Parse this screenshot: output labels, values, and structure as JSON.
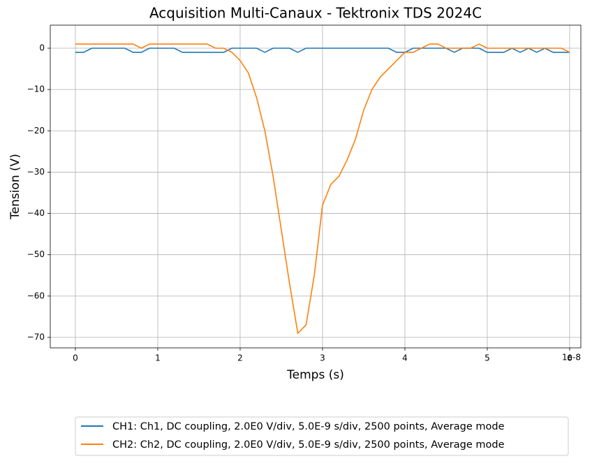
{
  "chart_data": {
    "type": "line",
    "title": "Acquisition Multi-Canaux - Tektronix TDS 2024C",
    "x_label": "Temps (s)",
    "y_label": "Tension (V)",
    "x_offset_label": "1e-8",
    "x": [
      0,
      1e-09,
      2e-09,
      3e-09,
      4e-09,
      5e-09,
      6e-09,
      7e-09,
      8e-09,
      9e-09,
      1e-08,
      1.1e-08,
      1.2e-08,
      1.3e-08,
      1.4e-08,
      1.5e-08,
      1.6e-08,
      1.7e-08,
      1.8e-08,
      1.9e-08,
      2e-08,
      2.1e-08,
      2.2e-08,
      2.3e-08,
      2.4e-08,
      2.5e-08,
      2.6e-08,
      2.7e-08,
      2.8e-08,
      2.9e-08,
      3e-08,
      3.1e-08,
      3.2e-08,
      3.3e-08,
      3.4e-08,
      3.5e-08,
      3.6e-08,
      3.7e-08,
      3.8e-08,
      3.9e-08,
      4e-08,
      4.1e-08,
      4.2e-08,
      4.3e-08,
      4.4e-08,
      4.5e-08,
      4.6e-08,
      4.7e-08,
      4.8e-08,
      4.9e-08,
      5e-08,
      5.1e-08,
      5.2e-08,
      5.3e-08,
      5.4e-08,
      5.5e-08,
      5.6e-08,
      5.7e-08,
      5.8e-08,
      5.9e-08,
      6e-08
    ],
    "series": [
      {
        "name": "CH1: Ch1, DC coupling, 2.0E0 V/div, 5.0E-9 s/div, 2500 points, Average mode",
        "color": "#1f77b4",
        "values": [
          -1,
          -1,
          0,
          0,
          0,
          0,
          0,
          -1,
          -1,
          0,
          0,
          0,
          0,
          -1,
          -1,
          -1,
          -1,
          -1,
          -1,
          0,
          0,
          0,
          0,
          -1,
          0,
          0,
          0,
          -1,
          0,
          0,
          0,
          0,
          0,
          0,
          0,
          0,
          0,
          0,
          0,
          -1,
          -1,
          0,
          0,
          0,
          0,
          0,
          -1,
          0,
          0,
          0,
          -1,
          -1,
          -1,
          0,
          -1,
          0,
          -1,
          0,
          -1,
          -1,
          -1
        ]
      },
      {
        "name": "CH2: Ch2, DC coupling, 2.0E0 V/div, 5.0E-9 s/div, 2500 points, Average mode",
        "color": "#ff7f0e",
        "values": [
          1,
          1,
          1,
          1,
          1,
          1,
          1,
          1,
          0,
          1,
          1,
          1,
          1,
          1,
          1,
          1,
          1,
          0,
          0,
          -1,
          -3,
          -6,
          -12,
          -20,
          -31,
          -44,
          -57,
          -69,
          -67,
          -55,
          -38,
          -33,
          -31,
          -27,
          -22,
          -15,
          -10,
          -7,
          -5,
          -3,
          -1,
          -1,
          0,
          1,
          1,
          0,
          0,
          0,
          0,
          1,
          0,
          0,
          0,
          0,
          0,
          0,
          0,
          0,
          0,
          0,
          -1
        ]
      }
    ],
    "xlim": [
      -3.05e-09,
      6.136e-08
    ],
    "ylim": [
      -72.54,
      5.58
    ],
    "xticks": [
      0,
      {
        "value": 1e-08,
        "label": "1"
      },
      {
        "value": 2e-08,
        "label": "2"
      },
      {
        "value": 3e-08,
        "label": "3"
      },
      {
        "value": 4e-08,
        "label": "4"
      },
      {
        "value": 5e-08,
        "label": "5"
      },
      {
        "value": 6e-08,
        "label": "6"
      }
    ],
    "yticks": [
      0,
      {
        "value": -10,
        "label": "−10"
      },
      {
        "value": -20,
        "label": "−20"
      },
      {
        "value": -30,
        "label": "−30"
      },
      {
        "value": -40,
        "label": "−40"
      },
      {
        "value": -50,
        "label": "−50"
      },
      {
        "value": -60,
        "label": "−60"
      },
      {
        "value": -70,
        "label": "−70"
      }
    ],
    "grid": true,
    "legend": "below"
  }
}
